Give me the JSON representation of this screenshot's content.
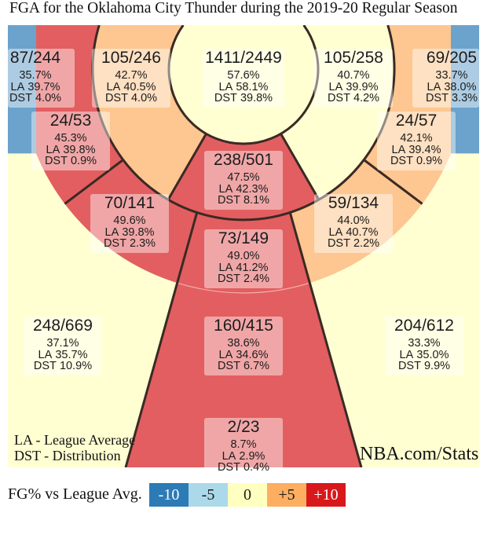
{
  "chart_data": {
    "type": "heatmap",
    "title": "FGA for the Oklahoma City Thunder during the 2019-20 Regular Season",
    "label_prefixes": {
      "la": "LA",
      "dst": "DST"
    },
    "zones": [
      {
        "made": 87,
        "attempts": 244,
        "fg_pct": "35.7",
        "la_pct": "39.7",
        "dst_pct": "4.0",
        "bin": "-10"
      },
      {
        "made": 105,
        "attempts": 246,
        "fg_pct": "42.7",
        "la_pct": "40.5",
        "dst_pct": "4.0",
        "bin": "+5"
      },
      {
        "made": 1411,
        "attempts": 2449,
        "fg_pct": "57.6",
        "la_pct": "58.1",
        "dst_pct": "39.8",
        "bin": "0"
      },
      {
        "made": 105,
        "attempts": 258,
        "fg_pct": "40.7",
        "la_pct": "39.9",
        "dst_pct": "4.2",
        "bin": "0"
      },
      {
        "made": 69,
        "attempts": 205,
        "fg_pct": "33.7",
        "la_pct": "38.0",
        "dst_pct": "3.3",
        "bin": "-10"
      },
      {
        "made": 24,
        "attempts": 53,
        "fg_pct": "45.3",
        "la_pct": "39.8",
        "dst_pct": "0.9",
        "bin": "+10"
      },
      {
        "made": 24,
        "attempts": 57,
        "fg_pct": "42.1",
        "la_pct": "39.4",
        "dst_pct": "0.9",
        "bin": "+5"
      },
      {
        "made": 238,
        "attempts": 501,
        "fg_pct": "47.5",
        "la_pct": "42.3",
        "dst_pct": "8.1",
        "bin": "+10"
      },
      {
        "made": 70,
        "attempts": 141,
        "fg_pct": "49.6",
        "la_pct": "39.8",
        "dst_pct": "2.3",
        "bin": "+10"
      },
      {
        "made": 59,
        "attempts": 134,
        "fg_pct": "44.0",
        "la_pct": "40.7",
        "dst_pct": "2.2",
        "bin": "+5"
      },
      {
        "made": 73,
        "attempts": 149,
        "fg_pct": "49.0",
        "la_pct": "41.2",
        "dst_pct": "2.4",
        "bin": "+10"
      },
      {
        "made": 248,
        "attempts": 669,
        "fg_pct": "37.1",
        "la_pct": "35.7",
        "dst_pct": "10.9",
        "bin": "0"
      },
      {
        "made": 160,
        "attempts": 415,
        "fg_pct": "38.6",
        "la_pct": "34.6",
        "dst_pct": "6.7",
        "bin": "+10"
      },
      {
        "made": 204,
        "attempts": 612,
        "fg_pct": "33.3",
        "la_pct": "35.0",
        "dst_pct": "9.9",
        "bin": "0"
      },
      {
        "made": 2,
        "attempts": 23,
        "fg_pct": "8.7",
        "la_pct": "2.9",
        "dst_pct": "0.4",
        "bin": "+10"
      }
    ],
    "notes": [
      "LA - League Average",
      "DST - Distribution"
    ],
    "source": "NBA.com/Stats",
    "legend": {
      "title": "FG% vs League Avg.",
      "items": [
        {
          "label": "-10",
          "color": "#2c7bb6"
        },
        {
          "label": "-5",
          "color": "#abd9e9"
        },
        {
          "label": "0",
          "color": "#ffffbf"
        },
        {
          "label": "+5",
          "color": "#fdae61"
        },
        {
          "label": "+10",
          "color": "#d7191c"
        }
      ]
    }
  }
}
